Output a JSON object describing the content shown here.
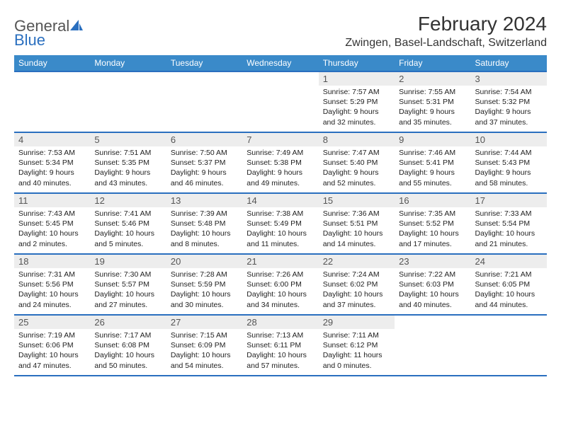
{
  "brand": {
    "part1": "General",
    "part2": "Blue"
  },
  "title": "February 2024",
  "location": "Zwingen, Basel-Landschaft, Switzerland",
  "colors": {
    "header_bg": "#3a8ac9",
    "border": "#2a6fbf",
    "daynum_bg": "#ededed",
    "text": "#222222",
    "brand_gray": "#555555",
    "brand_blue": "#2a6fbf"
  },
  "day_headers": [
    "Sunday",
    "Monday",
    "Tuesday",
    "Wednesday",
    "Thursday",
    "Friday",
    "Saturday"
  ],
  "weeks": [
    [
      null,
      null,
      null,
      null,
      {
        "n": "1",
        "sr": "7:57 AM",
        "ss": "5:29 PM",
        "dl": "9 hours and 32 minutes."
      },
      {
        "n": "2",
        "sr": "7:55 AM",
        "ss": "5:31 PM",
        "dl": "9 hours and 35 minutes."
      },
      {
        "n": "3",
        "sr": "7:54 AM",
        "ss": "5:32 PM",
        "dl": "9 hours and 37 minutes."
      }
    ],
    [
      {
        "n": "4",
        "sr": "7:53 AM",
        "ss": "5:34 PM",
        "dl": "9 hours and 40 minutes."
      },
      {
        "n": "5",
        "sr": "7:51 AM",
        "ss": "5:35 PM",
        "dl": "9 hours and 43 minutes."
      },
      {
        "n": "6",
        "sr": "7:50 AM",
        "ss": "5:37 PM",
        "dl": "9 hours and 46 minutes."
      },
      {
        "n": "7",
        "sr": "7:49 AM",
        "ss": "5:38 PM",
        "dl": "9 hours and 49 minutes."
      },
      {
        "n": "8",
        "sr": "7:47 AM",
        "ss": "5:40 PM",
        "dl": "9 hours and 52 minutes."
      },
      {
        "n": "9",
        "sr": "7:46 AM",
        "ss": "5:41 PM",
        "dl": "9 hours and 55 minutes."
      },
      {
        "n": "10",
        "sr": "7:44 AM",
        "ss": "5:43 PM",
        "dl": "9 hours and 58 minutes."
      }
    ],
    [
      {
        "n": "11",
        "sr": "7:43 AM",
        "ss": "5:45 PM",
        "dl": "10 hours and 2 minutes."
      },
      {
        "n": "12",
        "sr": "7:41 AM",
        "ss": "5:46 PM",
        "dl": "10 hours and 5 minutes."
      },
      {
        "n": "13",
        "sr": "7:39 AM",
        "ss": "5:48 PM",
        "dl": "10 hours and 8 minutes."
      },
      {
        "n": "14",
        "sr": "7:38 AM",
        "ss": "5:49 PM",
        "dl": "10 hours and 11 minutes."
      },
      {
        "n": "15",
        "sr": "7:36 AM",
        "ss": "5:51 PM",
        "dl": "10 hours and 14 minutes."
      },
      {
        "n": "16",
        "sr": "7:35 AM",
        "ss": "5:52 PM",
        "dl": "10 hours and 17 minutes."
      },
      {
        "n": "17",
        "sr": "7:33 AM",
        "ss": "5:54 PM",
        "dl": "10 hours and 21 minutes."
      }
    ],
    [
      {
        "n": "18",
        "sr": "7:31 AM",
        "ss": "5:56 PM",
        "dl": "10 hours and 24 minutes."
      },
      {
        "n": "19",
        "sr": "7:30 AM",
        "ss": "5:57 PM",
        "dl": "10 hours and 27 minutes."
      },
      {
        "n": "20",
        "sr": "7:28 AM",
        "ss": "5:59 PM",
        "dl": "10 hours and 30 minutes."
      },
      {
        "n": "21",
        "sr": "7:26 AM",
        "ss": "6:00 PM",
        "dl": "10 hours and 34 minutes."
      },
      {
        "n": "22",
        "sr": "7:24 AM",
        "ss": "6:02 PM",
        "dl": "10 hours and 37 minutes."
      },
      {
        "n": "23",
        "sr": "7:22 AM",
        "ss": "6:03 PM",
        "dl": "10 hours and 40 minutes."
      },
      {
        "n": "24",
        "sr": "7:21 AM",
        "ss": "6:05 PM",
        "dl": "10 hours and 44 minutes."
      }
    ],
    [
      {
        "n": "25",
        "sr": "7:19 AM",
        "ss": "6:06 PM",
        "dl": "10 hours and 47 minutes."
      },
      {
        "n": "26",
        "sr": "7:17 AM",
        "ss": "6:08 PM",
        "dl": "10 hours and 50 minutes."
      },
      {
        "n": "27",
        "sr": "7:15 AM",
        "ss": "6:09 PM",
        "dl": "10 hours and 54 minutes."
      },
      {
        "n": "28",
        "sr": "7:13 AM",
        "ss": "6:11 PM",
        "dl": "10 hours and 57 minutes."
      },
      {
        "n": "29",
        "sr": "7:11 AM",
        "ss": "6:12 PM",
        "dl": "11 hours and 0 minutes."
      },
      null,
      null
    ]
  ],
  "labels": {
    "sunrise": "Sunrise: ",
    "sunset": "Sunset: ",
    "daylight": "Daylight: "
  }
}
